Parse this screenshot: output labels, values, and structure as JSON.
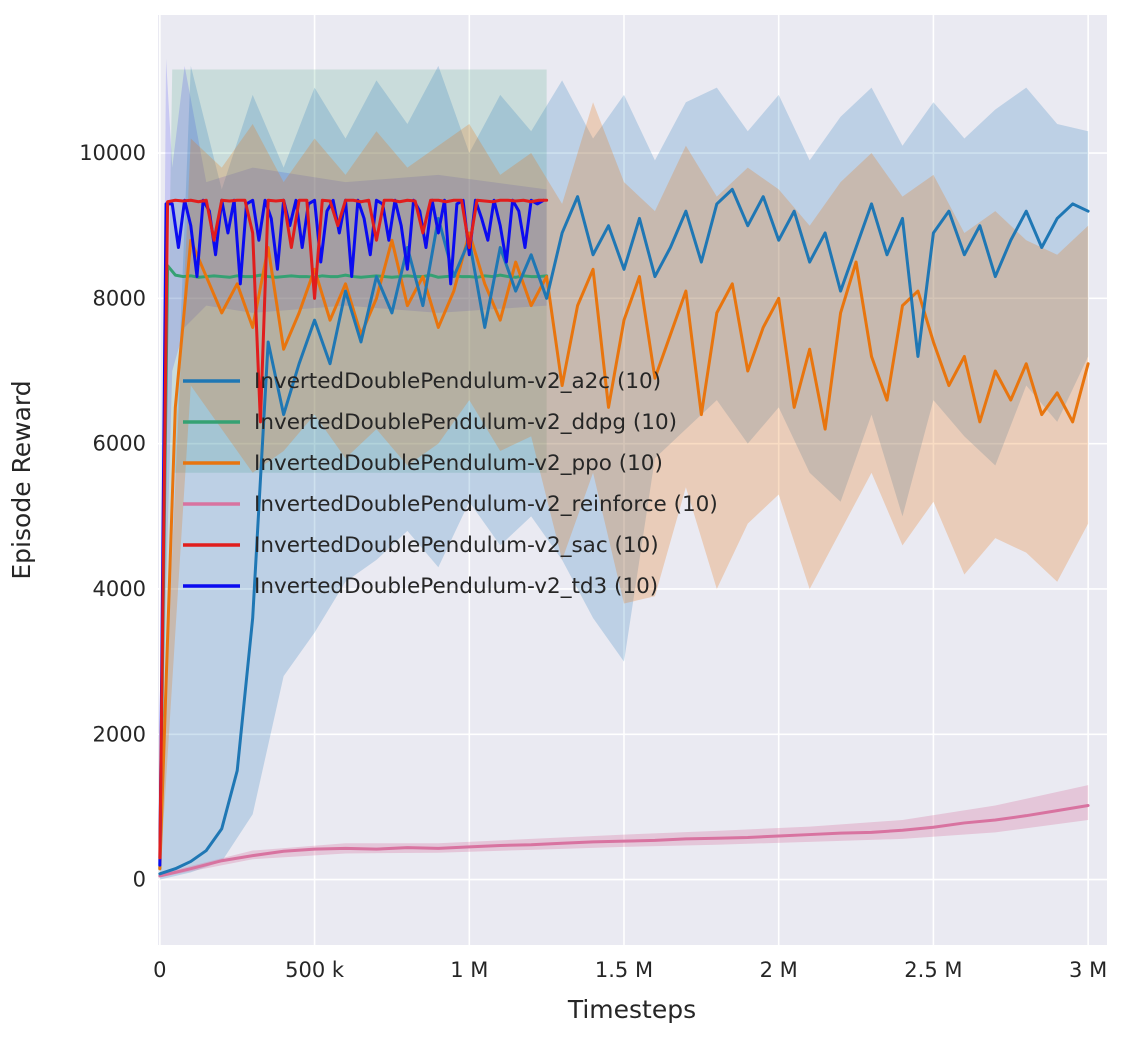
{
  "chart_data": {
    "type": "line",
    "title": "",
    "xlabel": "Timesteps",
    "ylabel": "Episode Reward",
    "xlim": [
      -6000,
      3061000
    ],
    "ylim": [
      -900,
      11900
    ],
    "grid": true,
    "legend_position": "upper-left-inside",
    "background": "#eaeaf2",
    "gridline_color": "#ffffff",
    "text_color": "#262626",
    "x_ticks": {
      "values": [
        0,
        500000,
        1000000,
        1500000,
        2000000,
        2500000,
        3000000
      ],
      "labels": [
        "0",
        "500 k",
        "1 M",
        "1.5 M",
        "2 M",
        "2.5 M",
        "3 M"
      ]
    },
    "y_ticks": {
      "values": [
        0,
        2000,
        4000,
        6000,
        8000,
        10000
      ],
      "labels": [
        "0",
        "2000",
        "4000",
        "6000",
        "8000",
        "10000"
      ]
    },
    "series": [
      {
        "key": "a2c",
        "label": "InvertedDoublePendulum-v2_a2c (10)",
        "color": "#1f77b4",
        "x_start": 0,
        "x_step": 50000,
        "mean": [
          80,
          150,
          250,
          400,
          700,
          1500,
          3600,
          7400,
          6400,
          7100,
          7700,
          7100,
          8100,
          7400,
          8300,
          7800,
          8700,
          7900,
          9100,
          8300,
          8800,
          7600,
          8700,
          8100,
          8600,
          8000,
          8900,
          9400,
          8600,
          9000,
          8400,
          9100,
          8300,
          8700,
          9200,
          8500,
          9300,
          9500,
          9000,
          9400,
          8800,
          9200,
          8500,
          8900,
          8100,
          8700,
          9300,
          8600,
          9100,
          7200,
          8900,
          9200,
          8600,
          9000,
          8300,
          8800,
          9200,
          8700,
          9100,
          9300,
          9200
        ],
        "band": {
          "x_start": 0,
          "x_step": 100000,
          "opacity": 0.22,
          "hi": [
            400,
            11200,
            9500,
            10800,
            9800,
            10900,
            10200,
            11000,
            10400,
            11200,
            10000,
            10800,
            10300,
            11000,
            10200,
            10800,
            9900,
            10700,
            10900,
            10300,
            10800,
            9900,
            10500,
            10900,
            10100,
            10700,
            10200,
            10600,
            10900,
            10400,
            10300
          ],
          "lo": [
            0,
            100,
            250,
            900,
            2800,
            3400,
            4100,
            4400,
            4800,
            4300,
            5200,
            4600,
            5000,
            4400,
            3600,
            3000,
            5800,
            6200,
            6600,
            6000,
            6500,
            5600,
            5200,
            6400,
            5000,
            6600,
            6100,
            5700,
            6800,
            6300,
            7200
          ]
        }
      },
      {
        "key": "ddpg",
        "label": "InvertedDoublePendulum-v2_ddpg (10)",
        "color": "#35a173",
        "x_start": 0,
        "x_step": 25000,
        "mean": [
          150,
          8450,
          8320,
          8300,
          8310,
          8290,
          8300,
          8310,
          8300,
          8290,
          8310,
          8300,
          8300,
          8320,
          8300,
          8290,
          8300,
          8310,
          8300,
          8300,
          8290,
          8310,
          8300,
          8300,
          8320,
          8300,
          8290,
          8300,
          8310,
          8300,
          8290,
          8300,
          8310,
          8300,
          8300,
          8320,
          8290,
          8300,
          8310,
          8300,
          8300,
          8290,
          8310,
          8300,
          8320,
          8300,
          8290,
          8310,
          8300,
          8300,
          8310
        ],
        "band": {
          "x": [
            0,
            40000,
            1250000
          ],
          "opacity": 0.18,
          "hi": [
            400,
            11150,
            11150
          ],
          "lo": [
            0,
            5600,
            5600
          ]
        }
      },
      {
        "key": "ppo",
        "label": "InvertedDoublePendulum-v2_ppo (10)",
        "color": "#e8750e",
        "x_start": 0,
        "x_step": 50000,
        "mean": [
          150,
          6500,
          8800,
          8300,
          7800,
          8200,
          7600,
          8700,
          7300,
          7800,
          8400,
          7700,
          8200,
          7500,
          8000,
          8800,
          7900,
          8300,
          7600,
          8100,
          8900,
          8200,
          7700,
          8500,
          7900,
          8300,
          6800,
          7900,
          8400,
          6500,
          7700,
          8300,
          6900,
          7500,
          8100,
          6400,
          7800,
          8200,
          7000,
          7600,
          8000,
          6500,
          7300,
          6200,
          7800,
          8500,
          7200,
          6600,
          7900,
          8100,
          7400,
          6800,
          7200,
          6300,
          7000,
          6600,
          7100,
          6400,
          6700,
          6300,
          7100
        ],
        "band": {
          "x_start": 0,
          "x_step": 100000,
          "opacity": 0.25,
          "hi": [
            700,
            10200,
            9800,
            10400,
            9600,
            10200,
            9700,
            10300,
            9800,
            10100,
            10400,
            9700,
            10000,
            9300,
            10700,
            9600,
            9200,
            10100,
            9400,
            9800,
            9500,
            9000,
            9600,
            10000,
            9400,
            9700,
            8900,
            9200,
            8800,
            8600,
            9000
          ],
          "lo": [
            0,
            6800,
            6200,
            5600,
            5900,
            6400,
            5800,
            6200,
            5700,
            6000,
            6600,
            5900,
            6100,
            4400,
            5600,
            3800,
            3900,
            5400,
            4000,
            4900,
            5300,
            4000,
            4800,
            5600,
            4600,
            5200,
            4200,
            4700,
            4500,
            4100,
            4900
          ]
        }
      },
      {
        "key": "reinforce",
        "label": "InvertedDoublePendulum-v2_reinforce (10)",
        "color": "#d873a0",
        "x_start": 0,
        "x_step": 100000,
        "mean": [
          50,
          150,
          260,
          330,
          390,
          420,
          430,
          420,
          440,
          430,
          450,
          470,
          480,
          500,
          520,
          530,
          540,
          560,
          570,
          580,
          600,
          620,
          640,
          650,
          680,
          720,
          780,
          820,
          880,
          950,
          1020
        ],
        "band": {
          "x_start": 0,
          "x_step": 300000,
          "opacity": 0.3,
          "hi": [
            80,
            400,
            500,
            500,
            560,
            620,
            670,
            730,
            820,
            1020,
            1300
          ],
          "lo": [
            30,
            280,
            360,
            370,
            410,
            450,
            480,
            520,
            560,
            650,
            820
          ]
        }
      },
      {
        "key": "sac",
        "label": "InvertedDoublePendulum-v2_sac (10)",
        "color": "#e11d1d",
        "x_start": 0,
        "x_step": 25000,
        "mean": [
          300,
          9330,
          9350,
          9340,
          9350,
          9330,
          9350,
          8800,
          9350,
          9340,
          9350,
          9350,
          8900,
          6300,
          9350,
          9340,
          9350,
          8700,
          9350,
          9350,
          8000,
          9350,
          9340,
          9000,
          9350,
          9350,
          9330,
          9350,
          8800,
          9350,
          9350,
          9330,
          9350,
          9340,
          8900,
          9350,
          9350,
          9330,
          9350,
          9350,
          8700,
          9350,
          9340,
          9330,
          9350,
          9350,
          9340,
          9350,
          9330,
          9350,
          9350
        ]
      },
      {
        "key": "td3",
        "label": "InvertedDoublePendulum-v2_td3 (10)",
        "color": "#0b0bf0",
        "x_start": 0,
        "x_step": 20000,
        "mean": [
          200,
          9300,
          9300,
          8700,
          9350,
          9000,
          8300,
          9350,
          9200,
          8600,
          9350,
          8900,
          9350,
          8200,
          9300,
          9350,
          8800,
          9350,
          9100,
          8400,
          9350,
          9000,
          9350,
          8700,
          9300,
          9350,
          8500,
          9200,
          9350,
          8900,
          9350,
          8300,
          9350,
          9100,
          8600,
          9350,
          9300,
          8800,
          9350,
          9000,
          8400,
          9350,
          9200,
          8700,
          9350,
          8900,
          9350,
          8200,
          9300,
          9350,
          8600,
          9350,
          9100,
          8800,
          9350,
          9000,
          8500,
          9350,
          9200,
          8700,
          9350,
          9300,
          9350
        ],
        "band": {
          "x": [
            0,
            20000,
            40000,
            80000,
            150000,
            300000,
            600000,
            900000,
            1250000
          ],
          "opacity": 0.15,
          "hi": [
            500,
            11300,
            9800,
            11200,
            9600,
            9800,
            9600,
            9700,
            9500
          ],
          "lo": [
            0,
            4000,
            7000,
            7600,
            7900,
            7800,
            7900,
            7800,
            7900
          ]
        }
      }
    ]
  }
}
